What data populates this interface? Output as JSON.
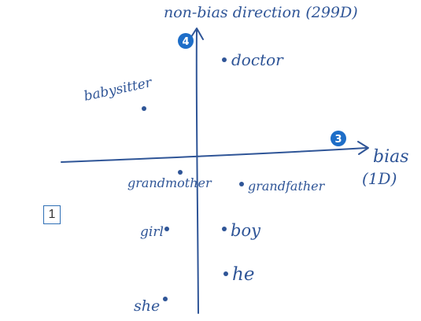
{
  "colors": {
    "ink": "#2f5597",
    "badge": "#1e6ec8",
    "badge_text": "#ffffff",
    "box_border": "#2f6fb5"
  },
  "axes": {
    "y_label": "non-bias direction (299D)",
    "x_label": "bias",
    "x_label_dim": "(1D)",
    "y_badge": "4",
    "x_badge": "3"
  },
  "words": [
    {
      "label": "doctor"
    },
    {
      "label": "babysitter"
    },
    {
      "label": "grandmother"
    },
    {
      "label": "grandfather"
    },
    {
      "label": "girl"
    },
    {
      "label": "boy"
    },
    {
      "label": "he"
    },
    {
      "label": "she"
    }
  ],
  "slide_number": "1"
}
